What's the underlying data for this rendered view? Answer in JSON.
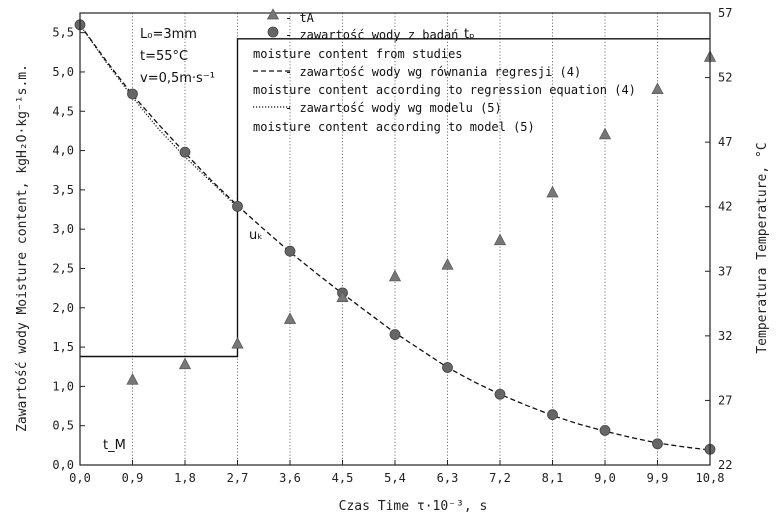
{
  "chart_data": {
    "type": "scatter",
    "xlabel": "Czas Time τ·10⁻³, s",
    "ylabel_left": "Zawartość wody Moisture content, kgH₂O·kg⁻¹s.m.",
    "ylabel_right": "Temperatura Temperature, °C",
    "xlim": [
      0.0,
      10.8
    ],
    "ylim_left": [
      0.0,
      5.75
    ],
    "ylim_right": [
      22,
      57
    ],
    "x_ticks": [
      "0,0",
      "0,9",
      "1,8",
      "2,7",
      "3,6",
      "4,5",
      "5,4",
      "6,3",
      "7,2",
      "8,1",
      "9,0",
      "9,9",
      "10,8"
    ],
    "y_left_ticks": [
      "0,0",
      "0,5",
      "1,0",
      "1,5",
      "2,0",
      "2,5",
      "3,0",
      "3,5",
      "4,0",
      "4,5",
      "5,0",
      "5,5"
    ],
    "y_right_ticks": [
      "22",
      "27",
      "32",
      "37",
      "42",
      "47",
      "52",
      "57"
    ],
    "grid": "vertical",
    "params": {
      "L0": "L₀=3mm",
      "t": "t=55°C",
      "v": "v=0,5m·s⁻¹"
    },
    "annotations": {
      "tp": "tₚ",
      "tM": "t_M",
      "uk": "uₖ"
    },
    "legend": [
      {
        "marker": "triangle",
        "label": "- tA"
      },
      {
        "marker": "circle",
        "label": "- zawartość wody z badań"
      },
      {
        "marker": "none",
        "label": "moisture content from studies"
      },
      {
        "marker": "dashed",
        "label": "- zawartość wody wg równania regresji (4)"
      },
      {
        "marker": "none",
        "label": "moisture content according to regression equation (4)"
      },
      {
        "marker": "dotted",
        "label": "- zawartość wody wg modelu (5)"
      },
      {
        "marker": "none",
        "label": "moisture content according to model (5)"
      }
    ],
    "series": [
      {
        "name": "zawartość wody z badań",
        "axis": "left",
        "style": "circle",
        "x": [
          0.0,
          0.9,
          1.8,
          2.7,
          3.6,
          4.5,
          5.4,
          6.3,
          7.2,
          8.1,
          9.0,
          9.9,
          10.8
        ],
        "y": [
          5.6,
          4.72,
          3.98,
          3.29,
          2.72,
          2.19,
          1.66,
          1.24,
          0.9,
          0.64,
          0.44,
          0.27,
          0.2
        ]
      },
      {
        "name": "tA",
        "axis": "right",
        "style": "triangle",
        "x": [
          0.9,
          1.8,
          2.7,
          3.6,
          4.5,
          5.4,
          6.3,
          7.2,
          8.1,
          9.0,
          9.9,
          10.8
        ],
        "y": [
          28.6,
          29.8,
          31.4,
          33.3,
          35.0,
          36.6,
          37.5,
          39.4,
          43.1,
          47.6,
          51.1,
          53.6
        ]
      },
      {
        "name": "zawartość wody wg równania regresji (4)",
        "axis": "left",
        "style": "dashed",
        "x": [
          0.0,
          0.45,
          0.9,
          1.35,
          1.8,
          2.25,
          2.7,
          3.15,
          3.6,
          4.05,
          4.5,
          4.95,
          5.4,
          5.85,
          6.3,
          6.75,
          7.2,
          7.65,
          8.1,
          8.55,
          9.0,
          9.45,
          9.9,
          10.35,
          10.8
        ],
        "y": [
          5.6,
          5.14,
          4.71,
          4.33,
          3.97,
          3.62,
          3.3,
          3.0,
          2.71,
          2.44,
          2.18,
          1.93,
          1.68,
          1.46,
          1.24,
          1.06,
          0.9,
          0.76,
          0.63,
          0.52,
          0.43,
          0.35,
          0.28,
          0.23,
          0.19
        ]
      },
      {
        "name": "zawartość wody wg modelu (5)",
        "axis": "left",
        "style": "dotted",
        "x": [
          0.0,
          0.45,
          0.9,
          1.35,
          1.8,
          2.25,
          2.7
        ],
        "y": [
          5.6,
          5.12,
          4.68,
          4.27,
          3.92,
          3.6,
          3.28
        ]
      },
      {
        "name": "tp / tM step",
        "axis": "right",
        "style": "step",
        "x": [
          0.0,
          2.7,
          2.7,
          10.8
        ],
        "y": [
          30.4,
          30.4,
          55.0,
          55.0
        ]
      }
    ]
  }
}
